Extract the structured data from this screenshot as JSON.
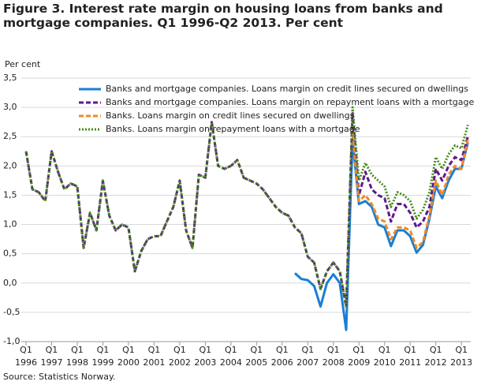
{
  "chart_data": {
    "type": "line",
    "title": "Figure 3. Interest rate margin on housing loans from banks and mortgage companies. Q1 1996-Q2 2013. Per cent",
    "ylabel": "Per cent",
    "source": "Source: Statistics Norway.",
    "categories": [
      [
        "Q1",
        "1996"
      ],
      null,
      null,
      null,
      [
        "Q1",
        "1997"
      ],
      null,
      null,
      null,
      [
        "Q1",
        "1998"
      ],
      null,
      null,
      null,
      [
        "Q1",
        "1999"
      ],
      null,
      null,
      null,
      [
        "Q1",
        "2000"
      ],
      null,
      null,
      null,
      [
        "Q1",
        "2001"
      ],
      null,
      null,
      null,
      [
        "Q1",
        "2002"
      ],
      null,
      null,
      null,
      [
        "Q1",
        "2003"
      ],
      null,
      null,
      null,
      [
        "Q1",
        "2004"
      ],
      null,
      null,
      null,
      [
        "Q1",
        "2005"
      ],
      null,
      null,
      null,
      [
        "Q1",
        "2006"
      ],
      null,
      null,
      null,
      [
        "Q1",
        "2007"
      ],
      null,
      null,
      null,
      [
        "Q1",
        "2008"
      ],
      null,
      null,
      null,
      [
        "Q1",
        "2009"
      ],
      null,
      null,
      null,
      [
        "Q1",
        "2010"
      ],
      null,
      null,
      null,
      [
        "Q1",
        "2011"
      ],
      null,
      null,
      null,
      [
        "Q1",
        "2012"
      ],
      null,
      null,
      null,
      [
        "Q1",
        "2013"
      ],
      null
    ],
    "ylim": [
      -1.0,
      3.5
    ],
    "yticks": [
      {
        "value": -1.0,
        "label": "-1,0"
      },
      {
        "value": -0.5,
        "label": "-0,5"
      },
      {
        "value": 0.0,
        "label": "0,0"
      },
      {
        "value": 0.5,
        "label": "0,5"
      },
      {
        "value": 1.0,
        "label": "1,0"
      },
      {
        "value": 1.5,
        "label": "1,5"
      },
      {
        "value": 2.0,
        "label": "2,0"
      },
      {
        "value": 2.5,
        "label": "2,5"
      },
      {
        "value": 3.0,
        "label": "3,0"
      },
      {
        "value": 3.5,
        "label": "3,5"
      }
    ],
    "grid": true,
    "series": [
      {
        "name": "Banks and mortgage companies. Loans margin on credit lines secured on dwellings",
        "color": "#1a7fd4",
        "line_style": "solid",
        "values": [
          null,
          null,
          null,
          null,
          null,
          null,
          null,
          null,
          null,
          null,
          null,
          null,
          null,
          null,
          null,
          null,
          null,
          null,
          null,
          null,
          null,
          null,
          null,
          null,
          null,
          null,
          null,
          null,
          null,
          null,
          null,
          null,
          null,
          null,
          null,
          null,
          null,
          null,
          null,
          null,
          null,
          null,
          0.17,
          0.07,
          0.05,
          -0.05,
          -0.4,
          0.0,
          0.15,
          0.0,
          -0.8,
          2.45,
          1.35,
          1.4,
          1.3,
          1.0,
          0.95,
          0.63,
          0.9,
          0.9,
          0.8,
          0.52,
          0.65,
          1.1,
          1.65,
          1.45,
          1.75,
          1.95,
          1.95,
          2.4
        ]
      },
      {
        "name": "Banks and mortgage companies. Loans margin on repayment loans with a mortgage",
        "color": "#5c1a8b",
        "line_style": "dashed",
        "values": [
          2.25,
          1.6,
          1.55,
          1.4,
          2.25,
          1.9,
          1.6,
          1.7,
          1.65,
          0.6,
          1.2,
          0.9,
          1.75,
          1.15,
          0.9,
          1.0,
          0.95,
          0.2,
          0.55,
          0.75,
          0.8,
          0.8,
          1.05,
          1.3,
          1.75,
          0.9,
          0.6,
          1.85,
          1.8,
          2.75,
          2.0,
          1.95,
          2.0,
          2.1,
          1.8,
          1.75,
          1.7,
          1.6,
          1.45,
          1.3,
          1.2,
          1.15,
          0.95,
          0.85,
          0.45,
          0.35,
          -0.1,
          0.2,
          0.35,
          0.2,
          -0.4,
          2.9,
          1.5,
          1.9,
          1.6,
          1.5,
          1.45,
          1.05,
          1.35,
          1.35,
          1.2,
          0.95,
          1.05,
          1.3,
          1.95,
          1.75,
          2.0,
          2.15,
          2.1,
          2.5
        ]
      },
      {
        "name": "Banks. Loans margin on credit lines secured on dwellings",
        "color": "#f08a24",
        "line_style": "dashed",
        "values": [
          null,
          null,
          null,
          null,
          null,
          null,
          null,
          null,
          null,
          null,
          null,
          null,
          null,
          null,
          null,
          null,
          null,
          null,
          null,
          null,
          null,
          null,
          null,
          null,
          null,
          null,
          null,
          null,
          null,
          null,
          null,
          null,
          null,
          null,
          null,
          null,
          null,
          null,
          null,
          null,
          null,
          null,
          null,
          null,
          null,
          null,
          null,
          null,
          null,
          null,
          null,
          2.55,
          1.4,
          1.5,
          1.35,
          1.1,
          1.05,
          0.75,
          0.95,
          0.95,
          0.9,
          0.6,
          0.7,
          1.15,
          1.75,
          1.5,
          1.85,
          2.0,
          1.95,
          2.45
        ]
      },
      {
        "name": "Banks. Loans margin on repayment loans with a mortgage",
        "color": "#4a8a1e",
        "line_style": "dotted",
        "values": [
          2.25,
          1.6,
          1.55,
          1.4,
          2.25,
          1.9,
          1.6,
          1.7,
          1.65,
          0.6,
          1.2,
          0.9,
          1.75,
          1.15,
          0.9,
          1.0,
          0.95,
          0.2,
          0.55,
          0.75,
          0.8,
          0.8,
          1.05,
          1.3,
          1.75,
          0.9,
          0.6,
          1.85,
          1.8,
          2.75,
          2.0,
          1.95,
          2.0,
          2.1,
          1.8,
          1.75,
          1.7,
          1.6,
          1.45,
          1.3,
          1.2,
          1.15,
          0.95,
          0.85,
          0.45,
          0.35,
          -0.1,
          0.2,
          0.35,
          0.2,
          -0.4,
          3.0,
          1.75,
          2.05,
          1.85,
          1.75,
          1.65,
          1.3,
          1.55,
          1.5,
          1.4,
          1.1,
          1.25,
          1.55,
          2.15,
          1.95,
          2.2,
          2.35,
          2.3,
          2.7
        ]
      }
    ]
  }
}
